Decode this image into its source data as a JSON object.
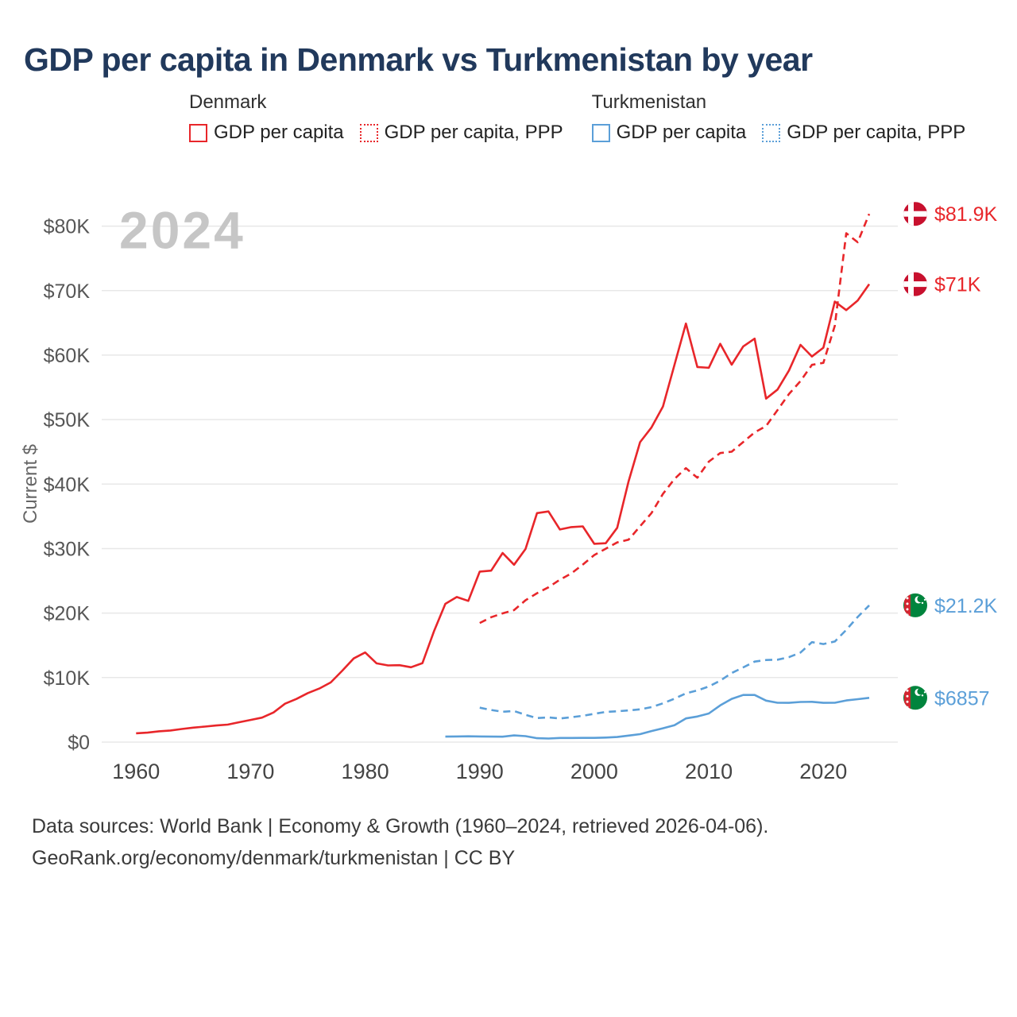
{
  "title": "GDP per capita in Denmark vs Turkmenistan by year",
  "legend": {
    "groups": [
      {
        "country": "Denmark",
        "items": [
          {
            "label": "GDP per capita",
            "color": "#e8262a",
            "style": "solid"
          },
          {
            "label": "GDP per capita, PPP",
            "color": "#e8262a",
            "style": "dotted"
          }
        ]
      },
      {
        "country": "Turkmenistan",
        "items": [
          {
            "label": "GDP per capita",
            "color": "#5b9fd8",
            "style": "solid"
          },
          {
            "label": "GDP per capita, PPP",
            "color": "#5b9fd8",
            "style": "dotted"
          }
        ]
      }
    ]
  },
  "footer": {
    "line1": "Data sources: World Bank | Economy & Growth (1960–2024, retrieved 2026-04-06).",
    "line2": "GeoRank.org/economy/denmark/turkmenistan | CC BY"
  },
  "chart_data": {
    "type": "line",
    "title": "GDP per capita in Denmark vs Turkmenistan by year",
    "ylabel": "Current $",
    "watermark": "2024",
    "ylim": [
      0,
      85000
    ],
    "grid": true,
    "legend_position": "top",
    "y_ticks": [
      {
        "value": 0,
        "label": "$0"
      },
      {
        "value": 10000,
        "label": "$10K"
      },
      {
        "value": 20000,
        "label": "$20K"
      },
      {
        "value": 30000,
        "label": "$30K"
      },
      {
        "value": 40000,
        "label": "$40K"
      },
      {
        "value": 50000,
        "label": "$50K"
      },
      {
        "value": 60000,
        "label": "$60K"
      },
      {
        "value": 70000,
        "label": "$70K"
      },
      {
        "value": 80000,
        "label": "$80K"
      }
    ],
    "x_ticks": [
      1960,
      1970,
      1980,
      1990,
      2000,
      2010,
      2020
    ],
    "series": [
      {
        "name": "Denmark — GDP per capita",
        "country": "Denmark",
        "flag": "denmark",
        "color": "#e8262a",
        "line": "solid",
        "start_year": 1960,
        "end_year": 2024,
        "end_label": "$71K",
        "values": [
          1365,
          1470,
          1670,
          1800,
          2030,
          2240,
          2400,
          2580,
          2710,
          3080,
          3440,
          3790,
          4600,
          5950,
          6690,
          7600,
          8300,
          9250,
          11080,
          12970,
          13900,
          12210,
          11890,
          11920,
          11600,
          12250,
          17150,
          21430,
          22490,
          21890,
          26440,
          26590,
          29320,
          27500,
          29930,
          35500,
          35760,
          32960,
          33330,
          33440,
          30750,
          30830,
          33230,
          40460,
          46500,
          48800,
          52030,
          58490,
          64900,
          58160,
          58040,
          61750,
          58510,
          61330,
          62550,
          53260,
          54660,
          57610,
          61600,
          59780,
          61150,
          68300,
          66980,
          68450,
          71000
        ]
      },
      {
        "name": "Denmark — GDP per capita, PPP",
        "country": "Denmark",
        "flag": "denmark",
        "color": "#e8262a",
        "line": "dashed",
        "start_year": 1990,
        "end_year": 2024,
        "end_label": "$81.9K",
        "values": [
          18470,
          19360,
          19960,
          20460,
          21990,
          23080,
          24000,
          25180,
          26150,
          27520,
          29000,
          29980,
          30960,
          31390,
          33460,
          35510,
          38480,
          40800,
          42480,
          40990,
          43480,
          44820,
          45020,
          46510,
          48020,
          49010,
          51480,
          53970,
          55980,
          58490,
          58800,
          64550,
          78900,
          77500,
          81900
        ]
      },
      {
        "name": "Turkmenistan — GDP per capita",
        "country": "Turkmenistan",
        "flag": "turkmenistan",
        "color": "#5b9fd8",
        "line": "solid",
        "start_year": 1987,
        "end_year": 2024,
        "end_label": "$6857",
        "values": [
          850,
          870,
          900,
          880,
          850,
          840,
          1030,
          920,
          600,
          550,
          640,
          640,
          650,
          650,
          700,
          790,
          1010,
          1230,
          1710,
          2140,
          2610,
          3670,
          3970,
          4440,
          5690,
          6700,
          7300,
          7310,
          6430,
          6100,
          6090,
          6220,
          6250,
          6080,
          6100,
          6450,
          6650,
          6857
        ]
      },
      {
        "name": "Turkmenistan — GDP per capita, PPP",
        "country": "Turkmenistan",
        "flag": "turkmenistan",
        "color": "#5b9fd8",
        "line": "dashed",
        "start_year": 1990,
        "end_year": 2024,
        "end_label": "$21.2K",
        "values": [
          5340,
          4980,
          4700,
          4820,
          4220,
          3720,
          3830,
          3660,
          3850,
          4080,
          4380,
          4680,
          4780,
          4920,
          5080,
          5420,
          6010,
          6720,
          7560,
          8010,
          8620,
          9520,
          10700,
          11580,
          12480,
          12720,
          12780,
          13170,
          13880,
          15500,
          15200,
          15600,
          17400,
          19400,
          21200
        ]
      }
    ]
  }
}
